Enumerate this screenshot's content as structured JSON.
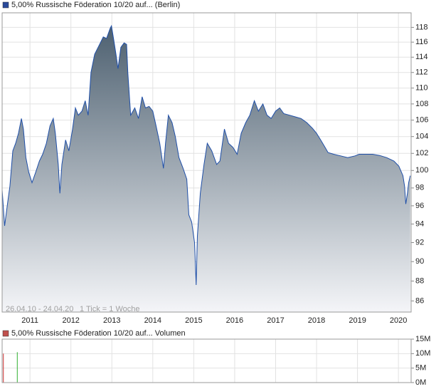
{
  "chart_data": [
    {
      "type": "area",
      "legend": "5,00% Russische Föderation 10/20 auf... (Berlin)",
      "legend_color": "#2a4a9a",
      "range_note": "26.04.10 - 24.04.20",
      "tick_note": "1 Tick = 1 Woche",
      "color": "#1f4fa8",
      "fill_top": "#4d6070",
      "fill_bottom": "#f4f5f8",
      "log_scale": true,
      "grid": true,
      "xlim": [
        2010.32,
        2020.31
      ],
      "ylim": [
        84.9,
        120
      ],
      "xticks": [
        2011,
        2012,
        2013,
        2014,
        2015,
        2016,
        2017,
        2018,
        2019,
        2020
      ],
      "yticks": [
        86,
        88,
        90,
        92,
        94,
        96,
        98,
        100,
        102,
        104,
        106,
        108,
        110,
        112,
        114,
        116,
        118
      ],
      "x": [
        2010.32,
        2010.38,
        2010.45,
        2010.51,
        2010.58,
        2010.65,
        2010.72,
        2010.79,
        2010.84,
        2010.9,
        2010.97,
        2011.05,
        2011.14,
        2011.23,
        2011.31,
        2011.4,
        2011.49,
        2011.57,
        2011.62,
        2011.69,
        2011.73,
        2011.78,
        2011.87,
        2011.95,
        2012.04,
        2012.11,
        2012.18,
        2012.27,
        2012.35,
        2012.42,
        2012.49,
        2012.58,
        2012.7,
        2012.79,
        2012.87,
        2012.96,
        2012.99,
        2013.05,
        2013.1,
        2013.15,
        2013.22,
        2013.3,
        2013.36,
        2013.39,
        2013.46,
        2013.56,
        2013.65,
        2013.74,
        2013.82,
        2013.91,
        2014.0,
        2014.08,
        2014.17,
        2014.26,
        2014.31,
        2014.38,
        2014.47,
        2014.55,
        2014.64,
        2014.74,
        2014.83,
        2014.88,
        2014.95,
        2015.02,
        2015.06,
        2015.09,
        2015.16,
        2015.25,
        2015.33,
        2015.44,
        2015.56,
        2015.64,
        2015.75,
        2015.85,
        2015.96,
        2016.06,
        2016.16,
        2016.27,
        2016.37,
        2016.48,
        2016.58,
        2016.69,
        2016.79,
        2016.89,
        2017.0,
        2017.1,
        2017.2,
        2017.34,
        2017.48,
        2017.62,
        2017.76,
        2017.9,
        2018.0,
        2018.1,
        2018.21,
        2018.28,
        2018.42,
        2018.59,
        2018.76,
        2018.94,
        2019.04,
        2019.2,
        2019.37,
        2019.54,
        2019.71,
        2019.89,
        2020.01,
        2020.11,
        2020.15,
        2020.18,
        2020.22,
        2020.25,
        2020.29
      ],
      "values": [
        97.8,
        93.8,
        96.2,
        98.2,
        102.3,
        103.2,
        104.4,
        106.2,
        104.9,
        101.5,
        99.8,
        98.6,
        99.8,
        101.1,
        101.9,
        103.2,
        105.3,
        106.2,
        104.4,
        100.7,
        97.4,
        100.7,
        103.6,
        102.3,
        104.9,
        107.5,
        106.6,
        107.1,
        108.4,
        106.6,
        112,
        114.4,
        115.7,
        116.7,
        116.5,
        117.9,
        118.2,
        116.2,
        114.4,
        112.5,
        115.3,
        115.9,
        115.7,
        112,
        106.6,
        107.5,
        106.2,
        108.9,
        107.5,
        107.7,
        107.1,
        105.3,
        103.2,
        100.25,
        103.2,
        106.6,
        105.7,
        104,
        101.5,
        100.25,
        99,
        95,
        94.2,
        92,
        87.6,
        92.7,
        97.4,
        100.7,
        103.2,
        102.3,
        100.7,
        101.1,
        104.9,
        103.2,
        102.7,
        101.9,
        104.4,
        105.7,
        106.6,
        108.4,
        107.1,
        108,
        106.6,
        106.2,
        107.1,
        107.5,
        106.8,
        106.6,
        106.4,
        106.2,
        105.7,
        105,
        104.4,
        103.6,
        102.7,
        102.1,
        101.9,
        101.7,
        101.5,
        101.7,
        101.9,
        101.9,
        101.9,
        101.75,
        101.5,
        101.1,
        100.5,
        99.4,
        98.2,
        96.2,
        97.4,
        98.6,
        99.4
      ]
    },
    {
      "type": "bar",
      "legend": "5,00% Russische Föderation 10/20 auf... Volumen",
      "legend_color": "#c0504d",
      "grid": true,
      "xlim": [
        2010.32,
        2020.31
      ],
      "ylim": [
        0,
        15000000
      ],
      "yticks": [
        {
          "value": 0,
          "label": "0M"
        },
        {
          "value": 5000000,
          "label": "5M"
        },
        {
          "value": 10000000,
          "label": "10M"
        },
        {
          "value": 15000000,
          "label": "15M"
        }
      ],
      "x": [
        2010.35,
        2010.69
      ],
      "values": [
        10000000,
        10500000
      ],
      "colors": [
        "#d03030",
        "#30b030"
      ]
    }
  ]
}
